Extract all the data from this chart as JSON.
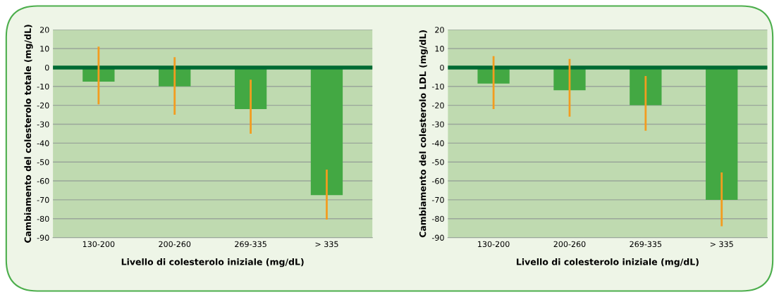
{
  "chart_data": [
    {
      "type": "bar",
      "xlabel": "Livello di colesterolo iniziale (mg/dL)",
      "ylabel": "Cambiamento del colesterolo totale (mg/dL)",
      "categories": [
        "130-200",
        "200-260",
        "269-335",
        "> 335"
      ],
      "values": [
        -7.5,
        -10,
        -22,
        -67.5
      ],
      "color": "#43a843",
      "errors": [
        [
          -19.5,
          11
        ],
        [
          -25,
          5.5
        ],
        [
          -35,
          -6.5
        ],
        [
          -80.5,
          -54
        ]
      ],
      "ylim": [
        -90,
        20
      ],
      "yticks": [
        -90,
        -80,
        -70,
        -60,
        -50,
        -40,
        -30,
        -20,
        -10,
        0,
        10,
        20
      ],
      "grid": "y",
      "ref_lines": [
        {
          "axis": "y",
          "value": 0,
          "color": "#006a33"
        }
      ]
    },
    {
      "type": "bar",
      "xlabel": "Livello di colesterolo iniziale (mg/dL)",
      "ylabel": "Cambiamento del colesterolo LDL (mg/dL)",
      "categories": [
        "130-200",
        "200-260",
        "269-335",
        "> 335"
      ],
      "values": [
        -8.5,
        -12,
        -20,
        -70
      ],
      "color": "#43a843",
      "errors": [
        [
          -22,
          6
        ],
        [
          -26,
          4.5
        ],
        [
          -33.5,
          -4.5
        ],
        [
          -84,
          -55.5
        ]
      ],
      "ylim": [
        -90,
        20
      ],
      "yticks": [
        -90,
        -80,
        -70,
        -60,
        -50,
        -40,
        -30,
        -20,
        -10,
        0,
        10,
        20
      ],
      "grid": "y",
      "ref_lines": [
        {
          "axis": "y",
          "value": 0,
          "color": "#006a33"
        }
      ]
    }
  ]
}
